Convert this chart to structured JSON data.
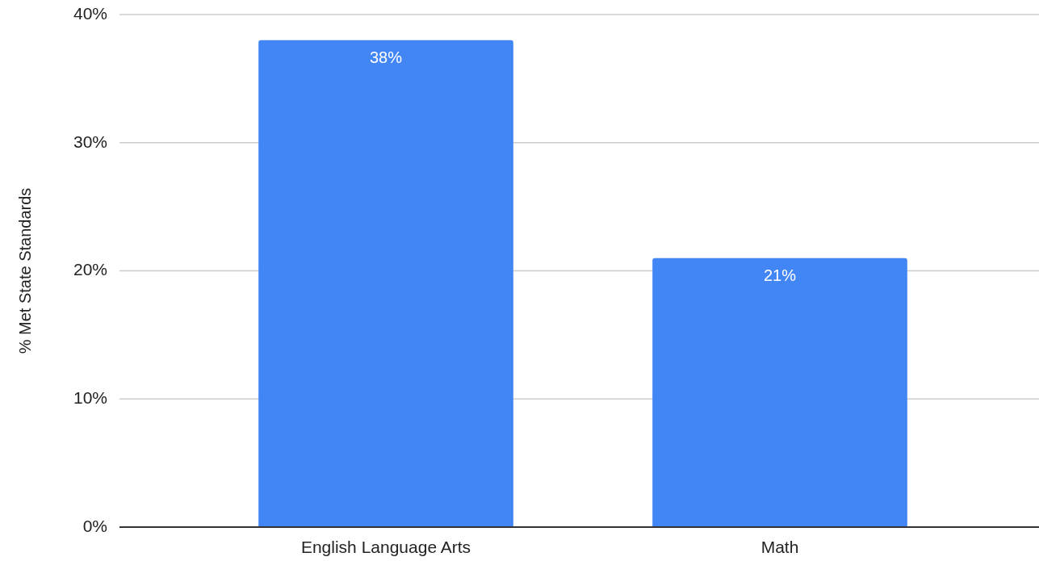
{
  "chart_data": {
    "type": "bar",
    "ylabel": "% Met State Standards",
    "categories": [
      "English Language Arts",
      "Math"
    ],
    "values": [
      38,
      21
    ],
    "value_labels": [
      "38%",
      "21%"
    ],
    "color": "#4285f4",
    "ylim": [
      0,
      40
    ],
    "yticks": [
      {
        "value": 0,
        "label": "0%"
      },
      {
        "value": 10,
        "label": "10%"
      },
      {
        "value": 20,
        "label": "20%"
      },
      {
        "value": 30,
        "label": "30%"
      },
      {
        "value": 40,
        "label": "40%"
      }
    ],
    "grid": "y"
  }
}
